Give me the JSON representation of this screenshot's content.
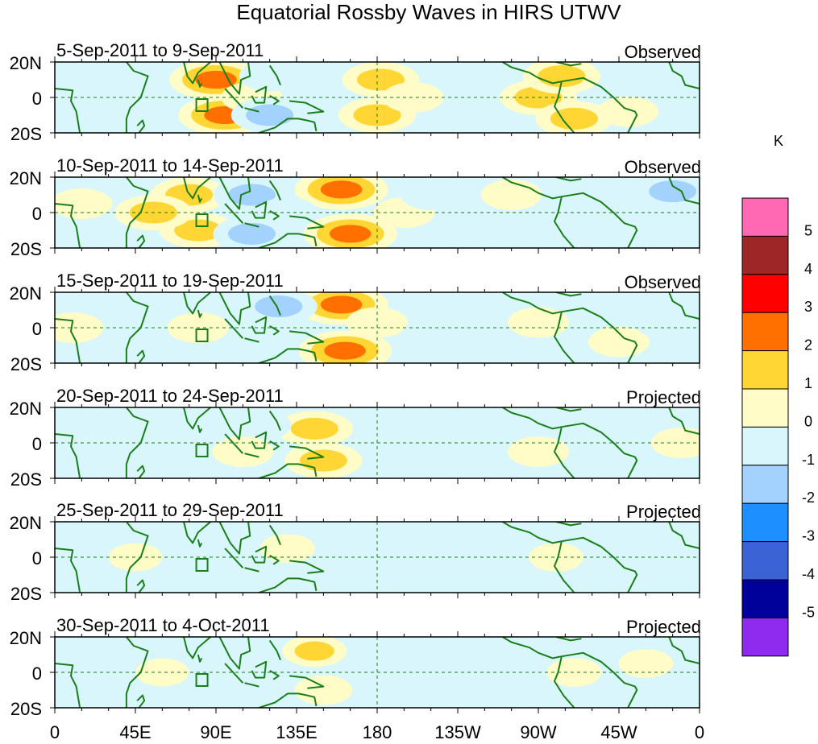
{
  "chart_data": {
    "type": "heatmap",
    "title": "Equatorial Rossby Waves in HIRS UTWV",
    "units": "K",
    "x_ticks": [
      "0",
      "45E",
      "90E",
      "135E",
      "180",
      "135W",
      "90W",
      "45W",
      "0"
    ],
    "lon_ticks_deg": [
      0,
      45,
      90,
      135,
      180,
      225,
      270,
      315,
      360
    ],
    "y_ticks": [
      "20N",
      "0",
      "20S"
    ],
    "lat_ticks_deg": [
      20,
      0,
      -20
    ],
    "lat_range": [
      -20,
      20
    ],
    "lon_range": [
      0,
      360
    ],
    "colorbar": {
      "levels": [
        "5",
        "4",
        "3",
        "2",
        "1",
        "0",
        "-1",
        "-2",
        "-3",
        "-4",
        "-5"
      ],
      "colors": [
        "#ff69b4",
        "#9e2626",
        "#ff0000",
        "#ff7000",
        "#ffd633",
        "#fffcc8",
        "#d8f6fb",
        "#a4d2ff",
        "#1e8fff",
        "#3b63d6",
        "#00009a",
        "#8f2bef"
      ]
    },
    "panels": [
      {
        "period": "5-Sep-2011 to 9-Sep-2011",
        "status": "Observed",
        "features": [
          {
            "lon": 90,
            "lat": 10,
            "value": 3
          },
          {
            "lon": 95,
            "lat": -10,
            "value": 3
          },
          {
            "lon": 40,
            "lat": 5,
            "value": -1
          },
          {
            "lon": 110,
            "lat": 0,
            "value": 1
          },
          {
            "lon": 120,
            "lat": -10,
            "value": -2
          },
          {
            "lon": 120,
            "lat": 12,
            "value": -1
          },
          {
            "lon": 182,
            "lat": 10,
            "value": 2
          },
          {
            "lon": 180,
            "lat": -10,
            "value": 2
          },
          {
            "lon": 200,
            "lat": 0,
            "value": 1
          },
          {
            "lon": 270,
            "lat": 0,
            "value": 2
          },
          {
            "lon": 283,
            "lat": 12,
            "value": 2
          },
          {
            "lon": 290,
            "lat": -12,
            "value": 2
          },
          {
            "lon": 320,
            "lat": -8,
            "value": 1
          },
          {
            "lon": 230,
            "lat": 10,
            "value": -1
          },
          {
            "lon": 15,
            "lat": -12,
            "value": -1
          }
        ]
      },
      {
        "period": "10-Sep-2011 to 14-Sep-2011",
        "status": "Observed",
        "features": [
          {
            "lon": 75,
            "lat": 10,
            "value": 2
          },
          {
            "lon": 80,
            "lat": -10,
            "value": 2
          },
          {
            "lon": 55,
            "lat": 0,
            "value": 2
          },
          {
            "lon": 110,
            "lat": 10,
            "value": -2
          },
          {
            "lon": 110,
            "lat": -12,
            "value": -2
          },
          {
            "lon": 160,
            "lat": 13,
            "value": 3
          },
          {
            "lon": 165,
            "lat": -12,
            "value": 3
          },
          {
            "lon": 195,
            "lat": 0,
            "value": 1
          },
          {
            "lon": 130,
            "lat": 0,
            "value": -1
          },
          {
            "lon": 210,
            "lat": 10,
            "value": -1
          },
          {
            "lon": 255,
            "lat": 10,
            "value": 1
          },
          {
            "lon": 300,
            "lat": 5,
            "value": -1
          },
          {
            "lon": 345,
            "lat": 12,
            "value": -2
          },
          {
            "lon": 15,
            "lat": 5,
            "value": 1
          }
        ]
      },
      {
        "period": "15-Sep-2011 to 19-Sep-2011",
        "status": "Observed",
        "features": [
          {
            "lon": 160,
            "lat": 13,
            "value": 3
          },
          {
            "lon": 162,
            "lat": -13,
            "value": 3
          },
          {
            "lon": 125,
            "lat": 12,
            "value": -2
          },
          {
            "lon": 120,
            "lat": -12,
            "value": -1
          },
          {
            "lon": 180,
            "lat": 3,
            "value": 1
          },
          {
            "lon": 10,
            "lat": 0,
            "value": 1
          },
          {
            "lon": 80,
            "lat": 0,
            "value": 1
          },
          {
            "lon": 220,
            "lat": 0,
            "value": -1
          },
          {
            "lon": 270,
            "lat": 3,
            "value": 1
          },
          {
            "lon": 315,
            "lat": -8,
            "value": 1
          },
          {
            "lon": 340,
            "lat": 3,
            "value": -1
          }
        ]
      },
      {
        "period": "20-Sep-2011 to 24-Sep-2011",
        "status": "Projected",
        "features": [
          {
            "lon": 145,
            "lat": 8,
            "value": 2
          },
          {
            "lon": 150,
            "lat": -10,
            "value": 2
          },
          {
            "lon": 115,
            "lat": 10,
            "value": -1
          },
          {
            "lon": 105,
            "lat": -5,
            "value": 1
          },
          {
            "lon": 270,
            "lat": -5,
            "value": 1
          },
          {
            "lon": 350,
            "lat": 0,
            "value": 1
          },
          {
            "lon": 215,
            "lat": 0,
            "value": -1
          },
          {
            "lon": 40,
            "lat": 0,
            "value": -1
          }
        ]
      },
      {
        "period": "25-Sep-2011 to 29-Sep-2011",
        "status": "Projected",
        "features": [
          {
            "lon": 130,
            "lat": 5,
            "value": 0.6
          },
          {
            "lon": 200,
            "lat": 0,
            "value": -0.6
          },
          {
            "lon": 280,
            "lat": 0,
            "value": 0.6
          },
          {
            "lon": 45,
            "lat": 0,
            "value": 0.5
          }
        ]
      },
      {
        "period": "30-Sep-2011 to 4-Oct-2011",
        "status": "Projected",
        "features": [
          {
            "lon": 145,
            "lat": 12,
            "value": 1.2
          },
          {
            "lon": 150,
            "lat": -10,
            "value": 0.8
          },
          {
            "lon": 200,
            "lat": 0,
            "value": -0.7
          },
          {
            "lon": 290,
            "lat": 0,
            "value": 0.6
          },
          {
            "lon": 330,
            "lat": 5,
            "value": 0.6
          },
          {
            "lon": 60,
            "lat": 0,
            "value": 0.5
          }
        ]
      }
    ]
  }
}
